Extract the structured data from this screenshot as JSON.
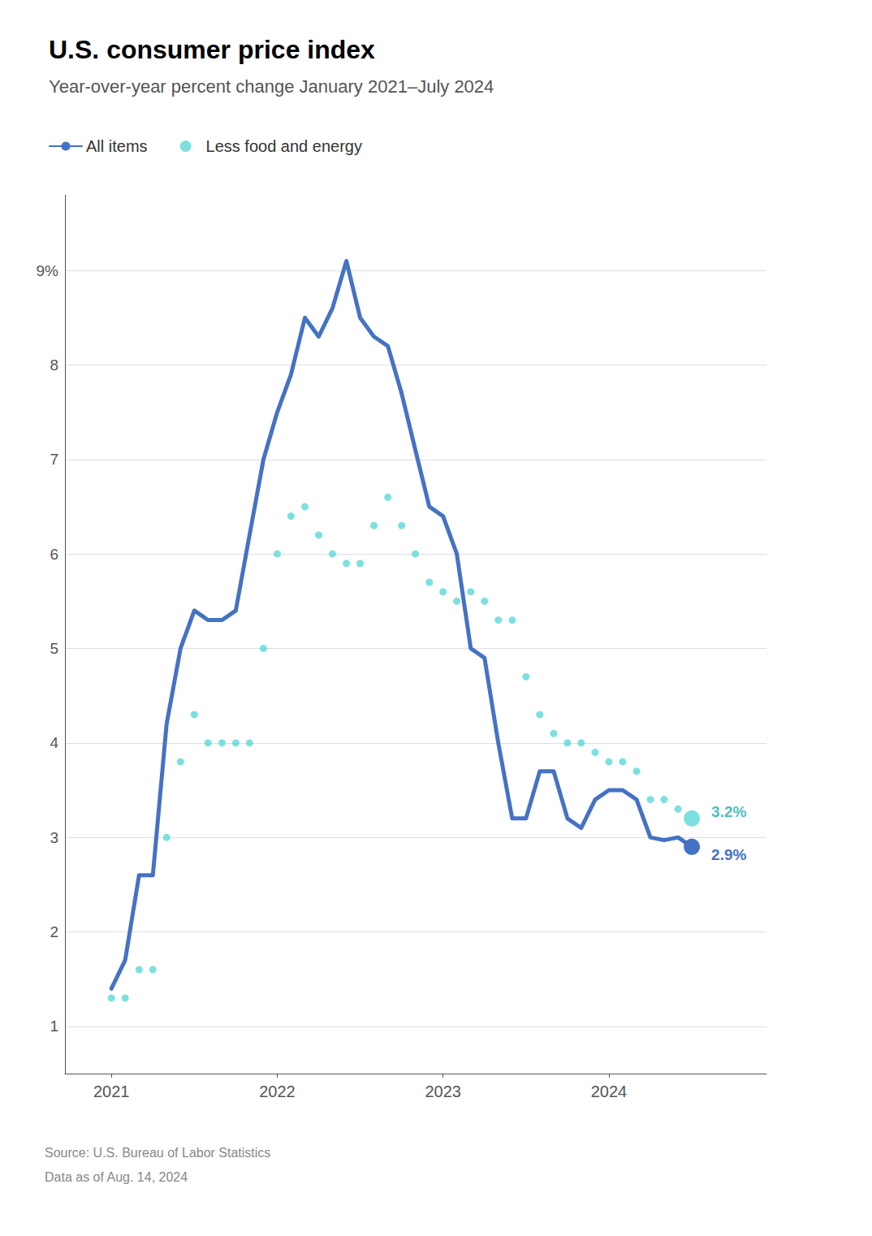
{
  "chart_data": {
    "type": "line",
    "title": "U.S. consumer price index",
    "subtitle": "Year-over-year percent change January 2021–July 2024",
    "source": "Source: U.S. Bureau of Labor Statistics",
    "note": "Data as of Aug. 14, 2024",
    "legend": "top",
    "grid": true,
    "xlim": [
      2020.72,
      2024.95
    ],
    "xticks": [
      2021,
      2022,
      2023,
      2024
    ],
    "ylim": [
      0.5,
      9.8
    ],
    "yticks": [
      1,
      2,
      3,
      4,
      5,
      6,
      7,
      8,
      {
        "value": 9,
        "label": "9%"
      }
    ],
    "x": [
      2021.0,
      2021.083,
      2021.167,
      2021.25,
      2021.333,
      2021.417,
      2021.5,
      2021.583,
      2021.667,
      2021.75,
      2021.833,
      2021.917,
      2022.0,
      2022.083,
      2022.167,
      2022.25,
      2022.333,
      2022.417,
      2022.5,
      2022.583,
      2022.667,
      2022.75,
      2022.833,
      2022.917,
      2023.0,
      2023.083,
      2023.167,
      2023.25,
      2023.333,
      2023.417,
      2023.5,
      2023.583,
      2023.667,
      2023.75,
      2023.833,
      2023.917,
      2024.0,
      2024.083,
      2024.167,
      2024.25,
      2024.333,
      2024.417,
      2024.5
    ],
    "series": [
      {
        "name": "All items",
        "type": "line",
        "line_style": "solid",
        "color": "#4472c4",
        "values": [
          1.4,
          1.7,
          2.6,
          2.6,
          4.2,
          5.0,
          5.4,
          5.3,
          5.3,
          5.4,
          6.2,
          7.0,
          7.5,
          7.9,
          8.5,
          8.3,
          8.6,
          9.1,
          8.5,
          8.3,
          8.2,
          7.7,
          7.1,
          6.5,
          6.4,
          6.0,
          5.0,
          4.9,
          4.0,
          3.2,
          3.2,
          3.7,
          3.7,
          3.2,
          3.1,
          3.4,
          3.5,
          3.5,
          3.4,
          3.0,
          2.97,
          3.0,
          2.9
        ]
      },
      {
        "name": "Less food and energy",
        "type": "scatter",
        "marker": "circle",
        "color": "#5dd8d8",
        "values": [
          1.3,
          1.3,
          1.6,
          1.6,
          3.0,
          3.8,
          4.3,
          4.0,
          4.0,
          4.0,
          4.0,
          5.0,
          6.0,
          6.4,
          6.5,
          6.2,
          6.0,
          5.9,
          5.9,
          6.3,
          6.6,
          6.3,
          6.0,
          5.7,
          5.6,
          5.5,
          5.6,
          5.5,
          5.3,
          5.3,
          4.7,
          4.3,
          4.1,
          4.0,
          4.0,
          3.9,
          3.8,
          3.8,
          3.7,
          3.4,
          3.4,
          3.3,
          3.2
        ]
      }
    ],
    "annotations": [
      {
        "text": "3.2%",
        "series": "Less food and energy",
        "color": "#1aaeae"
      },
      {
        "text": "2.9%",
        "series": "All items",
        "color": "#4472c4"
      }
    ]
  }
}
